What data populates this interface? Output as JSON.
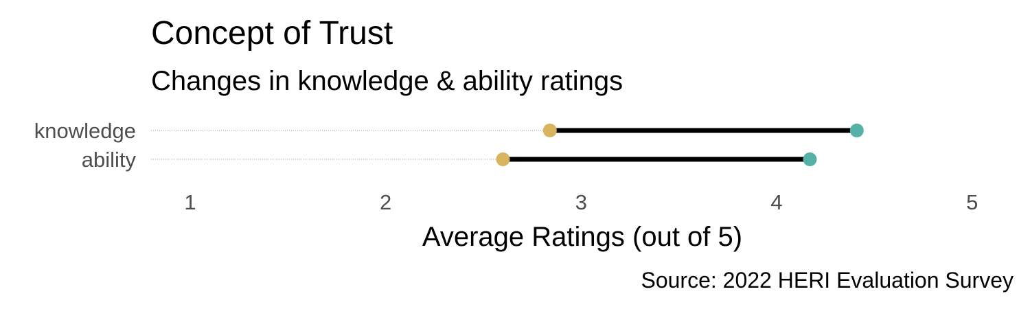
{
  "chart_data": {
    "type": "dumbbell",
    "title": "Concept of Trust",
    "subtitle": "Changes in knowledge & ability ratings",
    "xlabel": "Average Ratings (out of 5)",
    "caption": "Source: 2022 HERI Evaluation Survey",
    "xlim": [
      0.8,
      5.05
    ],
    "x_ticks": [
      1,
      2,
      3,
      4,
      5
    ],
    "grid": "dotted horizontal guide per category",
    "categories": [
      "knowledge",
      "ability"
    ],
    "series": [
      {
        "values": [
          2.84,
          2.6
        ],
        "color": "#D9B45F"
      },
      {
        "values": [
          4.41,
          4.17
        ],
        "color": "#56B2A7"
      }
    ],
    "segment_color": "#000000"
  }
}
